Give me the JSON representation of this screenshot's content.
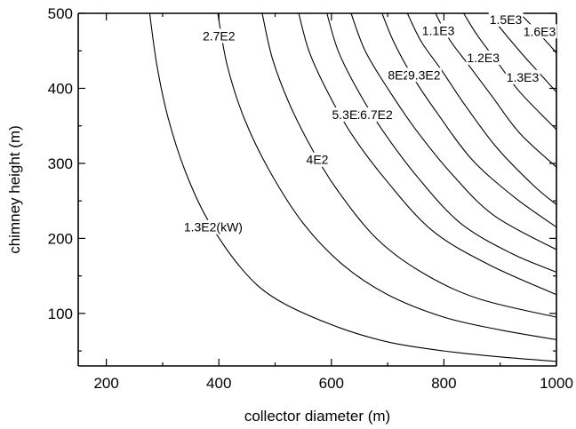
{
  "chart_data": {
    "type": "contour",
    "title": "",
    "xlabel": "collector diameter (m)",
    "ylabel": "chimney height (m)",
    "xlim": [
      150,
      1000
    ],
    "ylim": [
      30,
      500
    ],
    "x_ticks": [
      200,
      400,
      600,
      800,
      1000
    ],
    "y_ticks": [
      100,
      200,
      300,
      400,
      500
    ],
    "x_tick_labels": [
      "200",
      "400",
      "600",
      "800",
      "1000"
    ],
    "y_tick_labels": [
      "100",
      "200",
      "300",
      "400",
      "500"
    ],
    "grid": false,
    "legend": "none",
    "line_color": "#000000",
    "contours": [
      {
        "label": "1.3E2(kW)",
        "label_at": [
          390,
          215
        ],
        "points": [
          [
            277,
            500
          ],
          [
            290,
            430
          ],
          [
            310,
            360
          ],
          [
            340,
            290
          ],
          [
            380,
            225
          ],
          [
            440,
            160
          ],
          [
            500,
            120
          ],
          [
            600,
            85
          ],
          [
            700,
            62
          ],
          [
            800,
            50
          ],
          [
            900,
            42
          ],
          [
            1000,
            36
          ]
        ]
      },
      {
        "label": "2.7E2",
        "label_at": [
          400,
          470
        ],
        "points": [
          [
            398,
            500
          ],
          [
            415,
            430
          ],
          [
            445,
            360
          ],
          [
            490,
            290
          ],
          [
            550,
            220
          ],
          [
            620,
            165
          ],
          [
            700,
            125
          ],
          [
            800,
            95
          ],
          [
            900,
            78
          ],
          [
            1000,
            65
          ]
        ]
      },
      {
        "label": "4E2",
        "label_at": [
          575,
          305
        ],
        "points": [
          [
            477,
            500
          ],
          [
            495,
            440
          ],
          [
            525,
            380
          ],
          [
            565,
            320
          ],
          [
            610,
            265
          ],
          [
            680,
            200
          ],
          [
            760,
            155
          ],
          [
            860,
            120
          ],
          [
            1000,
            95
          ]
        ]
      },
      {
        "label": "5.3E2",
        "label_at": [
          630,
          365
        ],
        "points": [
          [
            542,
            500
          ],
          [
            560,
            450
          ],
          [
            590,
            400
          ],
          [
            635,
            340
          ],
          [
            700,
            275
          ],
          [
            780,
            210
          ],
          [
            880,
            165
          ],
          [
            1000,
            125
          ]
        ]
      },
      {
        "label": "6.7E2",
        "label_at": [
          680,
          365
        ],
        "points": [
          [
            592,
            500
          ],
          [
            612,
            450
          ],
          [
            645,
            400
          ],
          [
            690,
            345
          ],
          [
            755,
            280
          ],
          [
            830,
            220
          ],
          [
            920,
            180
          ],
          [
            1000,
            155
          ]
        ]
      },
      {
        "label": "8E2",
        "label_at": [
          720,
          418
        ],
        "points": [
          [
            635,
            500
          ],
          [
            660,
            450
          ],
          [
            700,
            400
          ],
          [
            750,
            345
          ],
          [
            815,
            285
          ],
          [
            890,
            230
          ],
          [
            1000,
            185
          ]
        ]
      },
      {
        "label": "9.3E2",
        "label_at": [
          765,
          418
        ],
        "points": [
          [
            690,
            500
          ],
          [
            712,
            460
          ],
          [
            745,
            415
          ],
          [
            790,
            365
          ],
          [
            850,
            305
          ],
          [
            925,
            255
          ],
          [
            1000,
            215
          ]
        ]
      },
      {
        "label": "1.1E3",
        "label_at": [
          790,
          477
        ],
        "points": [
          [
            735,
            500
          ],
          [
            760,
            462
          ],
          [
            795,
            425
          ],
          [
            840,
            375
          ],
          [
            895,
            320
          ],
          [
            960,
            270
          ],
          [
            1000,
            245
          ]
        ]
      },
      {
        "label": "1.2E3",
        "label_at": [
          870,
          441
        ],
        "points": [
          [
            785,
            500
          ],
          [
            810,
            465
          ],
          [
            845,
            430
          ],
          [
            885,
            390
          ],
          [
            935,
            340
          ],
          [
            1000,
            295
          ]
        ]
      },
      {
        "label": "1.3E3",
        "label_at": [
          940,
          415
        ],
        "points": [
          [
            835,
            500
          ],
          [
            860,
            470
          ],
          [
            895,
            435
          ],
          [
            935,
            395
          ],
          [
            1000,
            345
          ]
        ]
      },
      {
        "label": "1.5E3",
        "label_at": [
          910,
          492
        ],
        "points": [
          [
            880,
            500
          ],
          [
            905,
            476
          ],
          [
            940,
            445
          ],
          [
            970,
            420
          ],
          [
            1000,
            395
          ]
        ]
      },
      {
        "label": "1.6E3",
        "label_at": [
          970,
          476
        ],
        "points": [
          [
            935,
            500
          ],
          [
            958,
            482
          ],
          [
            985,
            460
          ],
          [
            1000,
            447
          ]
        ]
      }
    ]
  }
}
